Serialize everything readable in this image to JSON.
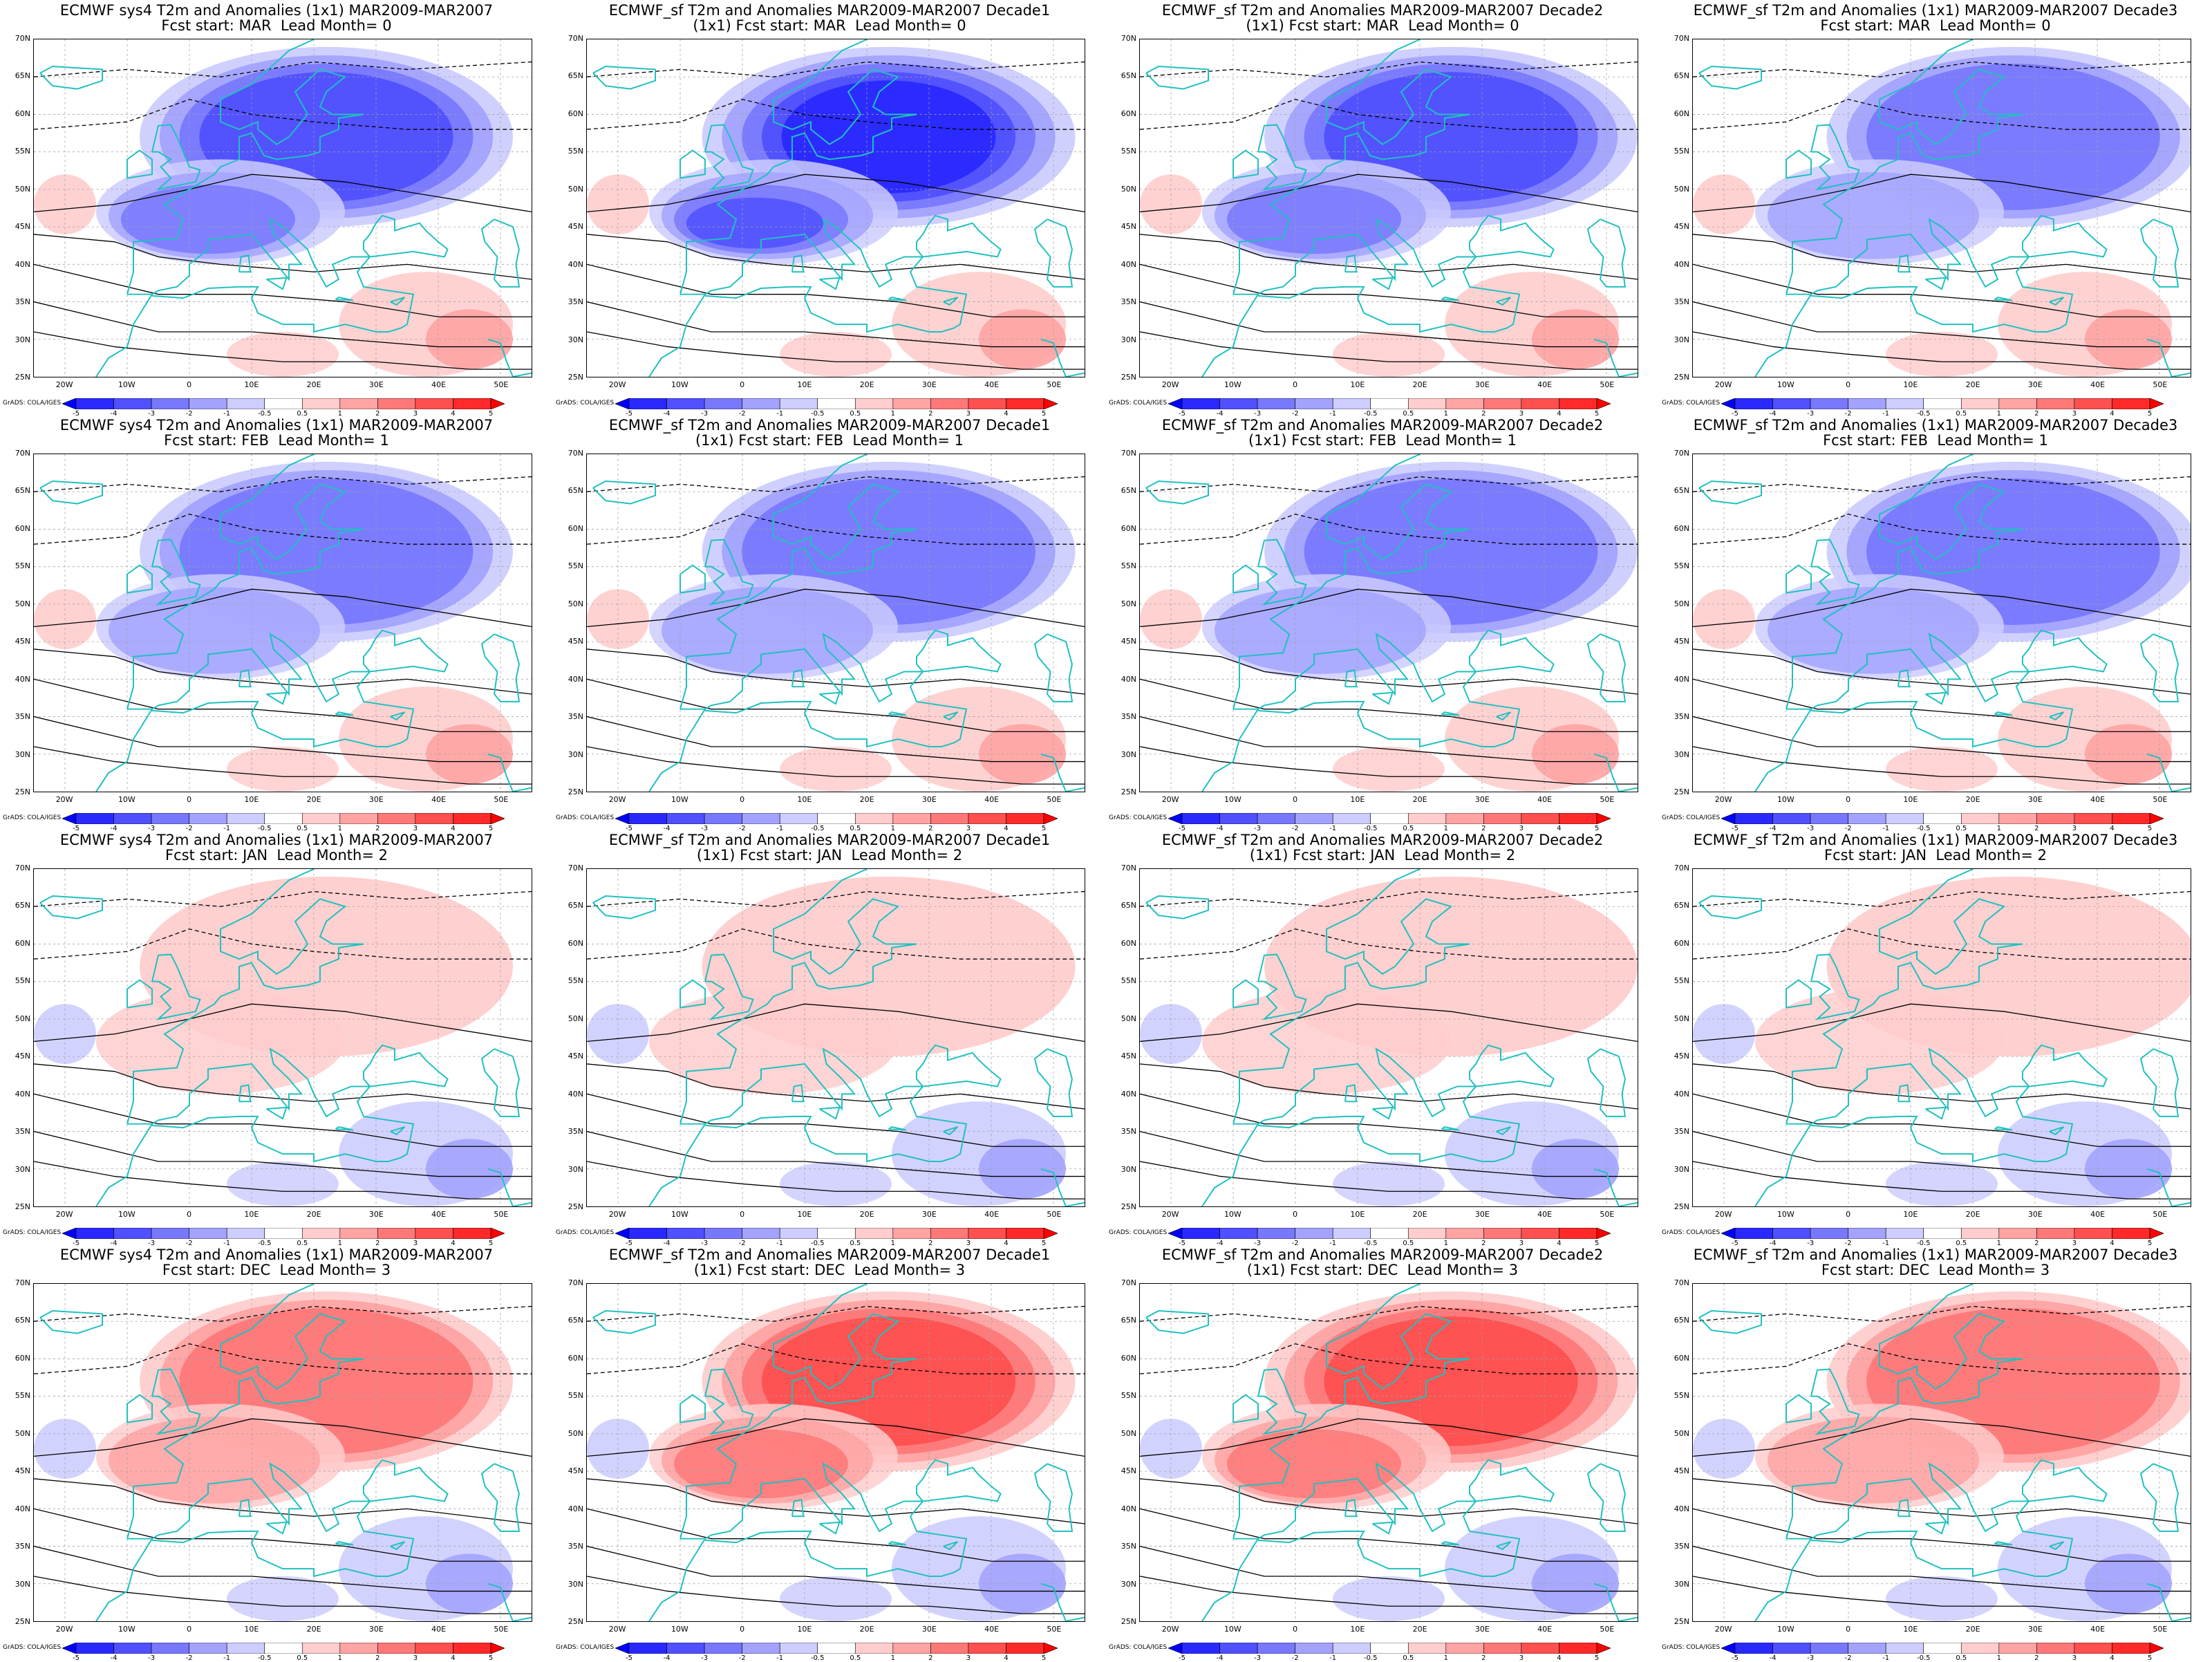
{
  "credit": "GrADS: COLA/IGES",
  "lat_labels": [
    "70N",
    "65N",
    "60N",
    "55N",
    "50N",
    "45N",
    "40N",
    "35N",
    "30N",
    "25N"
  ],
  "lon_labels": [
    "20W",
    "10W",
    "0",
    "10E",
    "20E",
    "30E",
    "40E",
    "50E"
  ],
  "colorbar_ticks": [
    "-5",
    "-4",
    "-3",
    "-2",
    "-1",
    "-0.5",
    "0.5",
    "1",
    "2",
    "3",
    "4",
    "5"
  ],
  "colorbar_colors": [
    "#0000ff",
    "#2929ff",
    "#5050ff",
    "#7878ff",
    "#a3a3ff",
    "#cdcdff",
    "#ffffff",
    "#ffcdcd",
    "#ffa3a3",
    "#ff7878",
    "#ff5050",
    "#ff2929",
    "#ff0000"
  ],
  "coastline_color": "#20c0c0",
  "panels": [
    {
      "title1": "ECMWF sys4 T2m and Anomalies (1x1) MAR2009-MAR2007",
      "title2": "Fcst start: MAR  Lead Month= 0",
      "anomaly": -3
    },
    {
      "title1": "ECMWF_sf T2m and Anomalies MAR2009-MAR2007 Decade1",
      "title2": "(1x1) Fcst start: MAR  Lead Month= 0",
      "anomaly": -4
    },
    {
      "title1": "ECMWF_sf T2m and Anomalies MAR2009-MAR2007 Decade2",
      "title2": "(1x1) Fcst start: MAR  Lead Month= 0",
      "anomaly": -3.5
    },
    {
      "title1": "ECMWF_sf T2m and Anomalies (1x1) MAR2009-MAR2007 Decade3",
      "title2": "Fcst start: MAR  Lead Month= 0",
      "anomaly": -2.5
    },
    {
      "title1": "ECMWF sys4 T2m and Anomalies (1x1) MAR2009-MAR2007",
      "title2": "Fcst start: FEB  Lead Month= 1",
      "anomaly": -2.5
    },
    {
      "title1": "ECMWF_sf T2m and Anomalies MAR2009-MAR2007 Decade1",
      "title2": "(1x1) Fcst start: FEB  Lead Month= 1",
      "anomaly": -2.5
    },
    {
      "title1": "ECMWF_sf T2m and Anomalies MAR2009-MAR2007 Decade2",
      "title2": "(1x1) Fcst start: FEB  Lead Month= 1",
      "anomaly": -2.5
    },
    {
      "title1": "ECMWF_sf T2m and Anomalies (1x1) MAR2009-MAR2007 Decade3",
      "title2": "Fcst start: FEB  Lead Month= 1",
      "anomaly": -2
    },
    {
      "title1": "ECMWF sys4 T2m and Anomalies (1x1) MAR2009-MAR2007",
      "title2": "Fcst start: JAN  Lead Month= 2",
      "anomaly": 0.5
    },
    {
      "title1": "ECMWF_sf T2m and Anomalies MAR2009-MAR2007 Decade1",
      "title2": "(1x1) Fcst start: JAN  Lead Month= 2",
      "anomaly": 0.8
    },
    {
      "title1": "ECMWF_sf T2m and Anomalies MAR2009-MAR2007 Decade2",
      "title2": "(1x1) Fcst start: JAN  Lead Month= 2",
      "anomaly": 0.5
    },
    {
      "title1": "ECMWF_sf T2m and Anomalies (1x1) MAR2009-MAR2007 Decade3",
      "title2": "Fcst start: JAN  Lead Month= 2",
      "anomaly": 0.5
    },
    {
      "title1": "ECMWF sys4 T2m and Anomalies (1x1) MAR2009-MAR2007",
      "title2": "Fcst start: DEC  Lead Month= 3",
      "anomaly": 2.5
    },
    {
      "title1": "ECMWF_sf T2m and Anomalies MAR2009-MAR2007 Decade1",
      "title2": "(1x1) Fcst start: DEC  Lead Month= 3",
      "anomaly": 3
    },
    {
      "title1": "ECMWF_sf T2m and Anomalies MAR2009-MAR2007 Decade2",
      "title2": "(1x1) Fcst start: DEC  Lead Month= 3",
      "anomaly": 3
    },
    {
      "title1": "ECMWF_sf T2m and Anomalies (1x1) MAR2009-MAR2007 Decade3",
      "title2": "Fcst start: DEC  Lead Month= 3",
      "anomaly": 2.5
    }
  ]
}
